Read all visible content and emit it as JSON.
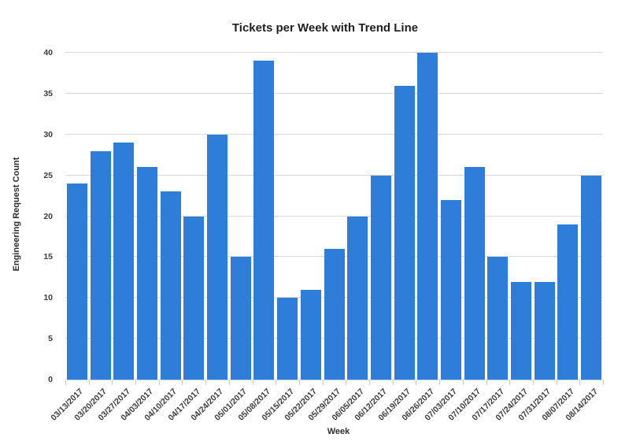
{
  "chart_data": {
    "type": "bar",
    "title": "Tickets per Week with Trend Line",
    "xlabel": "Week",
    "ylabel": "Engineering Request Count",
    "categories": [
      "03/13/2017",
      "03/20/2017",
      "03/27/2017",
      "04/03/2017",
      "04/10/2017",
      "04/17/2017",
      "04/24/2017",
      "05/01/2017",
      "05/08/2017",
      "05/15/2017",
      "05/22/2017",
      "05/29/2017",
      "06/05/2017",
      "06/12/2017",
      "06/19/2017",
      "06/26/2017",
      "07/03/2017",
      "07/10/2017",
      "07/17/2017",
      "07/24/2017",
      "07/31/2017",
      "08/07/2017",
      "08/14/2017"
    ],
    "values": [
      24,
      28,
      29,
      26,
      23,
      20,
      30,
      15,
      39,
      10,
      11,
      16,
      20,
      25,
      36,
      40,
      22,
      26,
      15,
      12,
      12,
      19,
      25
    ],
    "ylim": [
      0,
      40
    ],
    "yticks": [
      0,
      5,
      10,
      15,
      20,
      25,
      30,
      35,
      40
    ],
    "grid": "horizontal",
    "legend": "none",
    "colors": {
      "bar": "#2E7DD8",
      "gridline": "#d9d9d9",
      "axis_line": "#ccd9ec",
      "tick_mark": "#b9cbe6",
      "tick_label": "#3b3b3b",
      "title": "#1f1f1f"
    }
  }
}
